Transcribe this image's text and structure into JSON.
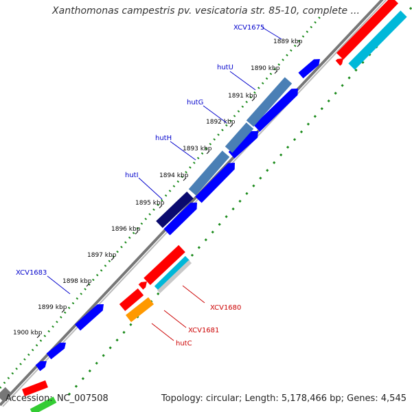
{
  "title": "Xanthomonas campestris pv. vesicatoria str. 85-10, complete ...",
  "footer": {
    "accession_label": "Accession:",
    "accession_value": "NC_007508",
    "topology_text": "Topology: circular; Length: 5,178,466 bp; Genes: 4,545"
  },
  "ticks": [
    "1889 kbp",
    "1890 kbp",
    "1891 kbp",
    "1892 kbp",
    "1893 kbp",
    "1894 kbp",
    "1895 kbp",
    "1896 kbp",
    "1897 kbp",
    "1898 kbp",
    "1899 kbp",
    "1900 kbp"
  ],
  "gene_labels": [
    {
      "name": "XCV1675",
      "color": "#0000cc"
    },
    {
      "name": "hutU",
      "color": "#0000cc"
    },
    {
      "name": "hutG",
      "color": "#0000cc"
    },
    {
      "name": "hutH",
      "color": "#0000cc"
    },
    {
      "name": "hutI",
      "color": "#0000cc"
    },
    {
      "name": "XCV1683",
      "color": "#0000cc"
    },
    {
      "name": "XCV1680",
      "color": "#cc0000"
    },
    {
      "name": "XCV1681",
      "color": "#cc0000"
    },
    {
      "name": "hutC",
      "color": "#cc0000"
    }
  ],
  "colors": {
    "forward_cds": "#0000ff",
    "forward_blast": "#4a7fb5",
    "forward_blast_dark": "#0a0a6e",
    "reverse_cds": "#ff0000",
    "reverse_blast": "#00b8d9",
    "reverse_orange": "#ff9900",
    "backbone": "#777777",
    "gc_skew_forward": "#1a8a1a"
  }
}
